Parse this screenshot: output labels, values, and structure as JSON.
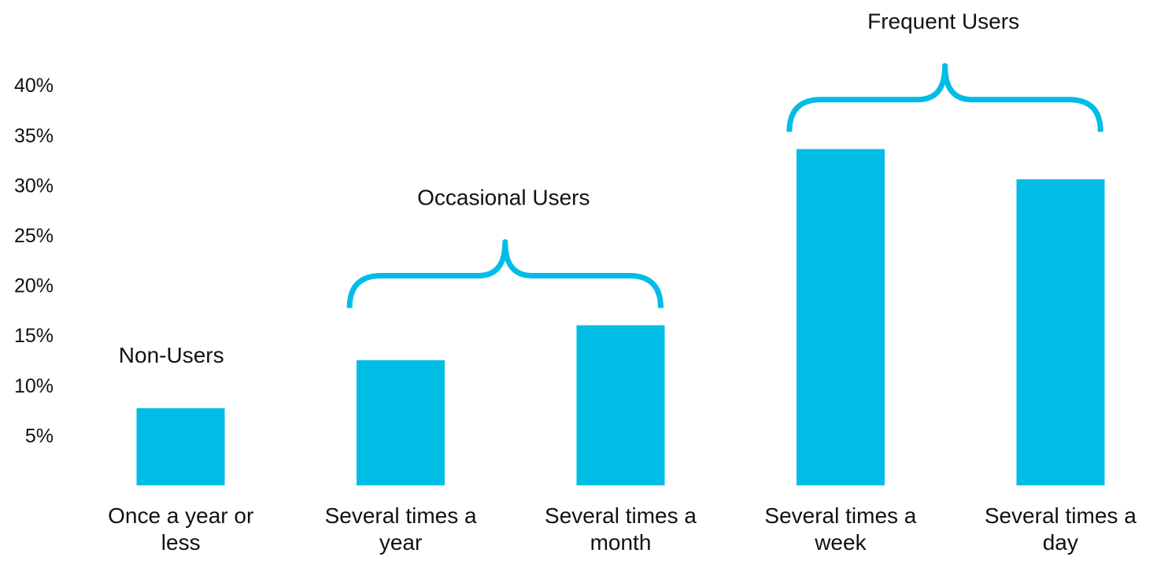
{
  "colors": {
    "bar": "#00bde6",
    "brace": "#00bde6",
    "text": "#111111",
    "background": "#ffffff"
  },
  "chart_data": {
    "type": "bar",
    "title": "",
    "xlabel": "",
    "ylabel": "",
    "ylim": [
      0,
      0.47
    ],
    "grid": false,
    "legend": "none",
    "yticks": [
      0.05,
      0.1,
      0.15,
      0.2,
      0.25,
      0.3,
      0.35,
      0.4
    ],
    "ytick_labels": [
      "5%",
      "10%",
      "15%",
      "20%",
      "25%",
      "30%",
      "35%",
      "40%"
    ],
    "categories": [
      [
        "Once a year or",
        "less"
      ],
      [
        "Several times a",
        "year"
      ],
      [
        "Several times a",
        "month"
      ],
      [
        "Several times a",
        "week"
      ],
      [
        "Several times a",
        "day"
      ]
    ],
    "values": [
      0.077,
      0.125,
      0.16,
      0.336,
      0.306
    ],
    "annotations": [
      {
        "text": "Non-Users",
        "type": "label",
        "from": 0,
        "to": 0
      },
      {
        "text": "Occasional Users",
        "type": "brace",
        "from": 1,
        "to": 2
      },
      {
        "text": "Frequent Users",
        "type": "brace",
        "from": 3,
        "to": 4
      }
    ]
  }
}
